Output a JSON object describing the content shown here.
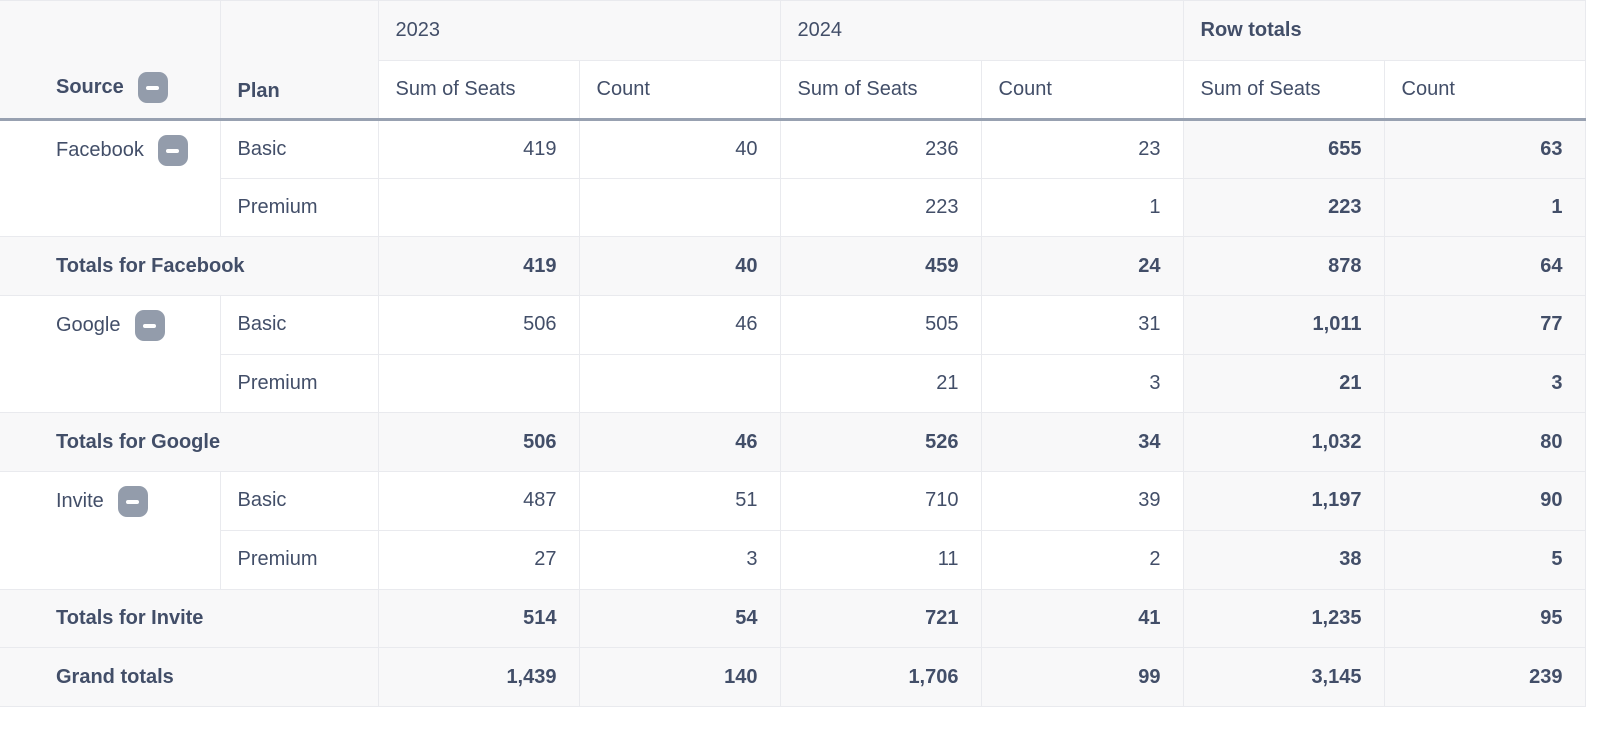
{
  "header": {
    "source_label": "Source",
    "plan_label": "Plan",
    "col_groups": [
      {
        "label": "2023",
        "bold": false
      },
      {
        "label": "2024",
        "bold": false
      },
      {
        "label": "Row totals",
        "bold": true
      }
    ],
    "sub_headers": [
      "Sum of Seats",
      "Count"
    ]
  },
  "groups": [
    {
      "source": "Facebook",
      "rows": [
        {
          "plan": "Basic",
          "values": [
            "419",
            "40",
            "236",
            "23",
            "655",
            "63"
          ]
        },
        {
          "plan": "Premium",
          "values": [
            "",
            "",
            "223",
            "1",
            "223",
            "1"
          ]
        }
      ],
      "totals": {
        "label": "Totals for Facebook",
        "values": [
          "419",
          "40",
          "459",
          "24",
          "878",
          "64"
        ]
      }
    },
    {
      "source": "Google",
      "rows": [
        {
          "plan": "Basic",
          "values": [
            "506",
            "46",
            "505",
            "31",
            "1,011",
            "77"
          ]
        },
        {
          "plan": "Premium",
          "values": [
            "",
            "",
            "21",
            "3",
            "21",
            "3"
          ]
        }
      ],
      "totals": {
        "label": "Totals for Google",
        "values": [
          "506",
          "46",
          "526",
          "34",
          "1,032",
          "80"
        ]
      }
    },
    {
      "source": "Invite",
      "rows": [
        {
          "plan": "Basic",
          "values": [
            "487",
            "51",
            "710",
            "39",
            "1,197",
            "90"
          ]
        },
        {
          "plan": "Premium",
          "values": [
            "27",
            "3",
            "11",
            "2",
            "38",
            "5"
          ]
        }
      ],
      "totals": {
        "label": "Totals for Invite",
        "values": [
          "514",
          "54",
          "721",
          "41",
          "1,235",
          "95"
        ]
      }
    }
  ],
  "grand_totals": {
    "label": "Grand totals",
    "values": [
      "1,439",
      "140",
      "1,706",
      "99",
      "3,145",
      "239"
    ]
  },
  "icons": {
    "collapse": "minus-icon"
  },
  "colors": {
    "text": "#424e68",
    "border_light": "#e9eaee",
    "border_heavy": "#98a1b1",
    "row_shade": "#f8f8f9",
    "collapse_button": "#939cab",
    "background": "#ffffff"
  }
}
